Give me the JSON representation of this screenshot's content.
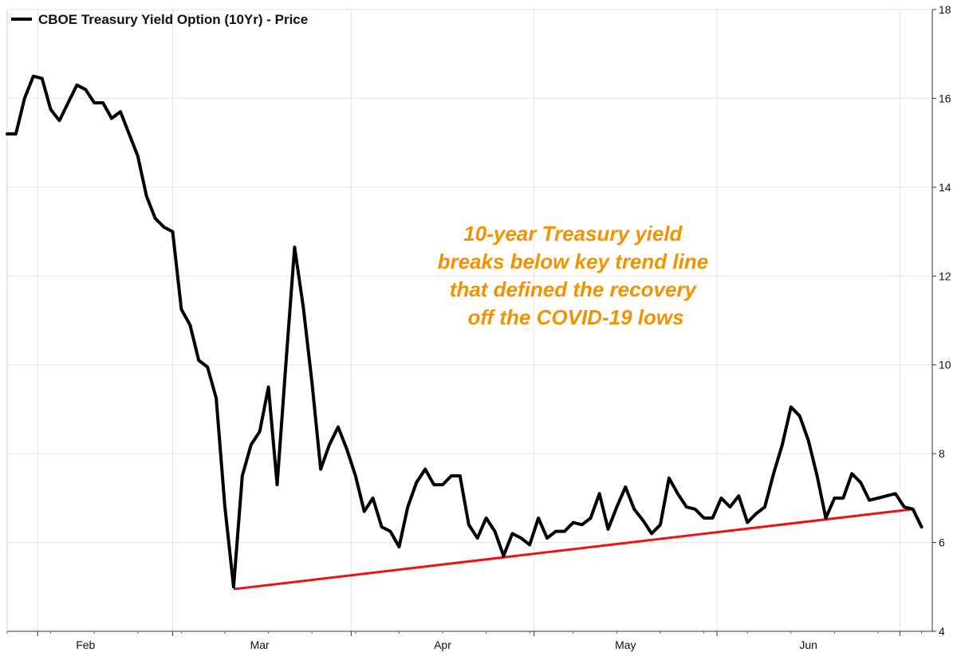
{
  "chart_data": {
    "type": "line",
    "title": "",
    "xlabel": "",
    "ylabel": "",
    "ylim": [
      4,
      18
    ],
    "yticks": [
      4,
      6,
      8,
      10,
      12,
      14,
      16,
      18
    ],
    "y_axis_side": "right",
    "grid": true,
    "legend": {
      "placement": "top-left",
      "entries": [
        "CBOE Treasury Yield Option (10Yr) - Price"
      ]
    },
    "month_labels": [
      {
        "label": "Feb",
        "index": 9
      },
      {
        "label": "Mar",
        "index": 29
      },
      {
        "label": "Apr",
        "index": 50
      },
      {
        "label": "May",
        "index": 71
      },
      {
        "label": "Jun",
        "index": 92
      }
    ],
    "series": [
      {
        "name": "CBOE Treasury Yield Option (10Yr) - Price",
        "color": "#000000",
        "values": [
          15.2,
          15.2,
          16.0,
          16.5,
          16.45,
          15.75,
          15.5,
          15.9,
          16.3,
          16.2,
          15.9,
          15.9,
          15.55,
          15.7,
          15.2,
          14.7,
          13.8,
          13.3,
          13.1,
          13.0,
          11.25,
          10.9,
          10.1,
          9.95,
          9.25,
          6.8,
          5.0,
          7.5,
          8.2,
          8.5,
          9.5,
          7.3,
          10.0,
          12.65,
          11.3,
          9.6,
          7.65,
          8.2,
          8.6,
          8.1,
          7.5,
          6.7,
          7.0,
          6.35,
          6.25,
          5.9,
          6.8,
          7.35,
          7.65,
          7.3,
          7.3,
          7.5,
          7.5,
          6.4,
          6.1,
          6.55,
          6.25,
          5.7,
          6.2,
          6.1,
          5.95,
          6.55,
          6.1,
          6.25,
          6.25,
          6.45,
          6.4,
          6.55,
          7.1,
          6.3,
          6.8,
          7.25,
          6.75,
          6.5,
          6.2,
          6.4,
          7.45,
          7.1,
          6.8,
          6.75,
          6.55,
          6.55,
          7.0,
          6.8,
          7.05,
          6.45,
          6.65,
          6.8,
          7.55,
          8.2,
          9.05,
          8.85,
          8.3,
          7.5,
          6.55,
          7.0,
          7.0,
          7.55,
          7.35,
          6.95,
          7.0,
          7.05,
          7.1,
          6.8,
          6.75,
          6.35
        ]
      }
    ],
    "trend_line": {
      "color": "#ee1111",
      "start": {
        "index": 26,
        "value": 4.95
      },
      "end": {
        "index": 104,
        "value": 6.75
      }
    },
    "annotation": {
      "color": "#f39200",
      "lines": [
        "10-year Treasury yield",
        "breaks below key trend line",
        "that defined the recovery",
        "off the COVID-19 lows"
      ]
    }
  }
}
